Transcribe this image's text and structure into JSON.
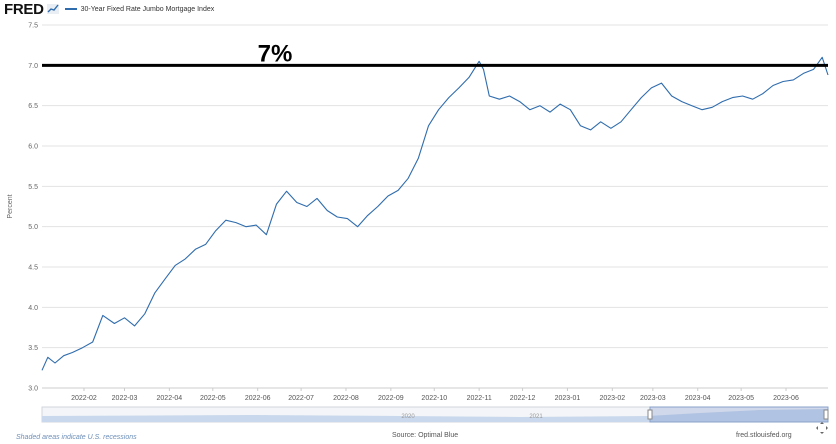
{
  "header": {
    "logo_text": "FRED",
    "logo_icon": "chart-line-icon",
    "series_title": "30-Year Fixed Rate Jumbo Mortgage Index"
  },
  "footer": {
    "recession_note": "Shaded areas indicate U.S. recessions",
    "source": "Source: Optimal Blue",
    "site": "fred.stlouisfed.org",
    "fullscreen_icon": "expand-icon"
  },
  "slider": {
    "year_labels": [
      "2020",
      "2021"
    ]
  },
  "annotation": {
    "text": "7%",
    "value": 7.0,
    "color": "#000000"
  },
  "colors": {
    "series": "#2f6cad",
    "grid": "#e3e3e3",
    "slider_fill": "#c9d8ec"
  },
  "chart_data": {
    "type": "line",
    "title": "",
    "xlabel": "",
    "ylabel": "Percent",
    "ylim": [
      3.0,
      7.5
    ],
    "yticks": [
      "3.0",
      "3.5",
      "4.0",
      "4.5",
      "5.0",
      "5.5",
      "6.0",
      "6.5",
      "7.0",
      "7.5"
    ],
    "xlim": [
      "2022-01-03",
      "2023-06-30"
    ],
    "xticks": [
      "2022-02",
      "2022-03",
      "2022-04",
      "2022-05",
      "2022-06",
      "2022-07",
      "2022-08",
      "2022-09",
      "2022-10",
      "2022-11",
      "2022-12",
      "2023-01",
      "2023-02",
      "2023-03",
      "2023-04",
      "2023-05",
      "2023-06"
    ],
    "grid": true,
    "series": [
      {
        "name": "30-Year Fixed Rate Jumbo Mortgage Index",
        "color": "#2f6cad",
        "points": [
          [
            "2022-01-03",
            3.22
          ],
          [
            "2022-01-07",
            3.38
          ],
          [
            "2022-01-12",
            3.31
          ],
          [
            "2022-01-18",
            3.4
          ],
          [
            "2022-01-24",
            3.44
          ],
          [
            "2022-01-31",
            3.5
          ],
          [
            "2022-02-07",
            3.57
          ],
          [
            "2022-02-14",
            3.9
          ],
          [
            "2022-02-22",
            3.8
          ],
          [
            "2022-03-01",
            3.87
          ],
          [
            "2022-03-08",
            3.77
          ],
          [
            "2022-03-15",
            3.92
          ],
          [
            "2022-03-22",
            4.18
          ],
          [
            "2022-03-29",
            4.35
          ],
          [
            "2022-04-05",
            4.52
          ],
          [
            "2022-04-12",
            4.6
          ],
          [
            "2022-04-19",
            4.72
          ],
          [
            "2022-04-26",
            4.78
          ],
          [
            "2022-05-03",
            4.95
          ],
          [
            "2022-05-10",
            5.08
          ],
          [
            "2022-05-17",
            5.05
          ],
          [
            "2022-05-24",
            5.0
          ],
          [
            "2022-05-31",
            5.02
          ],
          [
            "2022-06-07",
            4.9
          ],
          [
            "2022-06-14",
            5.28
          ],
          [
            "2022-06-21",
            5.44
          ],
          [
            "2022-06-28",
            5.3
          ],
          [
            "2022-07-05",
            5.25
          ],
          [
            "2022-07-12",
            5.35
          ],
          [
            "2022-07-19",
            5.2
          ],
          [
            "2022-07-26",
            5.12
          ],
          [
            "2022-08-02",
            5.1
          ],
          [
            "2022-08-09",
            5.0
          ],
          [
            "2022-08-16",
            5.14
          ],
          [
            "2022-08-23",
            5.25
          ],
          [
            "2022-08-30",
            5.38
          ],
          [
            "2022-09-06",
            5.45
          ],
          [
            "2022-09-13",
            5.6
          ],
          [
            "2022-09-20",
            5.85
          ],
          [
            "2022-09-27",
            6.25
          ],
          [
            "2022-10-04",
            6.45
          ],
          [
            "2022-10-11",
            6.6
          ],
          [
            "2022-10-18",
            6.72
          ],
          [
            "2022-10-25",
            6.85
          ],
          [
            "2022-11-01",
            7.05
          ],
          [
            "2022-11-04",
            6.95
          ],
          [
            "2022-11-08",
            6.62
          ],
          [
            "2022-11-15",
            6.58
          ],
          [
            "2022-11-22",
            6.62
          ],
          [
            "2022-11-29",
            6.55
          ],
          [
            "2022-12-06",
            6.45
          ],
          [
            "2022-12-13",
            6.5
          ],
          [
            "2022-12-20",
            6.42
          ],
          [
            "2022-12-27",
            6.52
          ],
          [
            "2023-01-03",
            6.45
          ],
          [
            "2023-01-10",
            6.25
          ],
          [
            "2023-01-17",
            6.2
          ],
          [
            "2023-01-24",
            6.3
          ],
          [
            "2023-01-31",
            6.22
          ],
          [
            "2023-02-07",
            6.3
          ],
          [
            "2023-02-14",
            6.45
          ],
          [
            "2023-02-21",
            6.6
          ],
          [
            "2023-02-28",
            6.72
          ],
          [
            "2023-03-07",
            6.78
          ],
          [
            "2023-03-14",
            6.62
          ],
          [
            "2023-03-21",
            6.55
          ],
          [
            "2023-03-28",
            6.5
          ],
          [
            "2023-04-04",
            6.45
          ],
          [
            "2023-04-11",
            6.48
          ],
          [
            "2023-04-18",
            6.55
          ],
          [
            "2023-04-25",
            6.6
          ],
          [
            "2023-05-02",
            6.62
          ],
          [
            "2023-05-09",
            6.58
          ],
          [
            "2023-05-16",
            6.65
          ],
          [
            "2023-05-23",
            6.75
          ],
          [
            "2023-05-30",
            6.8
          ],
          [
            "2023-06-06",
            6.82
          ],
          [
            "2023-06-13",
            6.9
          ],
          [
            "2023-06-20",
            6.95
          ],
          [
            "2023-06-26",
            7.1
          ],
          [
            "2023-06-30",
            6.88
          ]
        ]
      }
    ]
  }
}
